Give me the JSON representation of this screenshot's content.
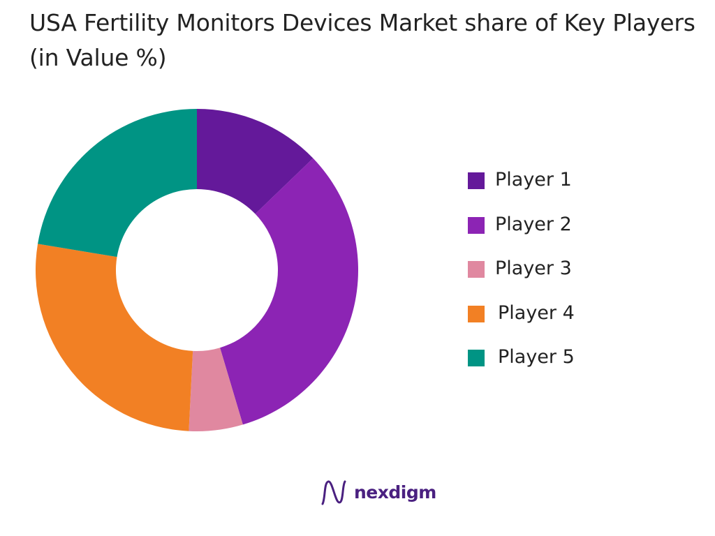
{
  "chart_data": {
    "type": "pie",
    "variant": "donut",
    "title": "USA Fertility Monitors Devices Market share of Key Players (in Value %)",
    "categories": [
      "Player 1",
      "Player 2",
      "Player 3",
      "Player 4",
      "Player 5"
    ],
    "values": [
      12.8,
      32.6,
      5.4,
      26.8,
      22.4
    ],
    "unit": "%",
    "colors": [
      "#64199a",
      "#8c24b4",
      "#e088a0",
      "#f28024",
      "#009484"
    ],
    "legend_position": "right",
    "start_angle": "top",
    "direction": "clockwise"
  },
  "branding": {
    "logo_text": "nexdigm",
    "logo_icon": "nexdigm-wave-icon",
    "logo_color": "#4a2080"
  }
}
